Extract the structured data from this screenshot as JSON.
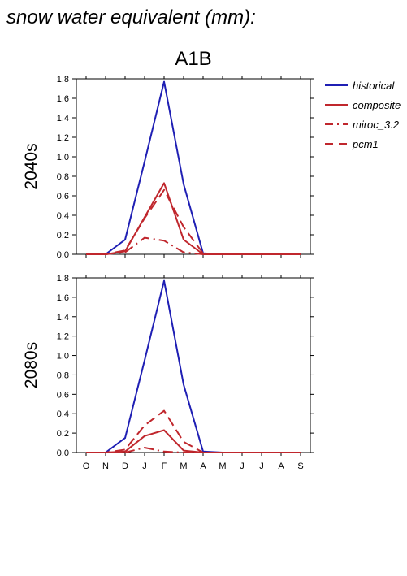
{
  "page_title": "snow water equivalent (mm):",
  "colors": {
    "historical": "#1f1fb4",
    "future": "#c0272d"
  },
  "chart_data": {
    "type": "line",
    "scenario": "A1B",
    "categories": [
      "O",
      "N",
      "D",
      "J",
      "F",
      "M",
      "A",
      "M",
      "J",
      "J",
      "A",
      "S"
    ],
    "ylim": [
      0,
      1.8
    ],
    "yticks": [
      "0.0",
      "0.2",
      "0.4",
      "0.6",
      "0.8",
      "1.0",
      "1.2",
      "1.4",
      "1.6",
      "1.8"
    ],
    "legend": [
      {
        "name": "historical",
        "style": "solid",
        "color": "#1f1fb4"
      },
      {
        "name": "composite",
        "style": "solid",
        "color": "#c0272d"
      },
      {
        "name": "miroc_3.2",
        "style": "dashdot",
        "color": "#c0272d"
      },
      {
        "name": "pcm1",
        "style": "dashed",
        "color": "#c0272d"
      }
    ],
    "panels": [
      {
        "label": "2040s",
        "series": [
          {
            "name": "historical",
            "values": [
              0,
              0,
              0.15,
              0.95,
              1.77,
              0.72,
              0.01,
              0,
              0,
              0,
              0,
              0
            ]
          },
          {
            "name": "composite",
            "values": [
              0,
              0,
              0.03,
              0.38,
              0.73,
              0.15,
              0,
              0,
              0,
              0,
              0,
              0
            ]
          },
          {
            "name": "miroc_3.2",
            "values": [
              0,
              0,
              0.02,
              0.17,
              0.14,
              0.02,
              0,
              0,
              0,
              0,
              0,
              0
            ]
          },
          {
            "name": "pcm1",
            "values": [
              0,
              0,
              0.04,
              0.37,
              0.66,
              0.28,
              0.01,
              0,
              0,
              0,
              0,
              0
            ]
          }
        ]
      },
      {
        "label": "2080s",
        "series": [
          {
            "name": "historical",
            "values": [
              0,
              0,
              0.15,
              0.95,
              1.77,
              0.7,
              0.01,
              0,
              0,
              0,
              0,
              0
            ]
          },
          {
            "name": "composite",
            "values": [
              0,
              0,
              0.01,
              0.17,
              0.23,
              0.02,
              0,
              0,
              0,
              0,
              0,
              0
            ]
          },
          {
            "name": "miroc_3.2",
            "values": [
              0,
              0,
              0,
              0.05,
              0.01,
              0,
              0,
              0,
              0,
              0,
              0,
              0
            ]
          },
          {
            "name": "pcm1",
            "values": [
              0,
              0,
              0.03,
              0.28,
              0.43,
              0.11,
              0,
              0,
              0,
              0,
              0,
              0
            ]
          }
        ]
      }
    ]
  }
}
